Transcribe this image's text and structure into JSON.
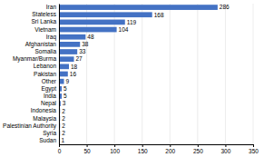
{
  "chart_data": {
    "type": "bar",
    "orientation": "horizontal",
    "categories": [
      "Sudan",
      "Syria",
      "Palestinian Authority",
      "Malaysia",
      "Indonesia",
      "Nepal",
      "India",
      "Egypt",
      "Other",
      "Pakistan",
      "Lebanon",
      "Myanmar/Burma",
      "Somalia",
      "Afghanistan",
      "Iraq",
      "Vietnam",
      "Sri Lanka",
      "Stateless",
      "Iran"
    ],
    "values": [
      1,
      2,
      2,
      2,
      2,
      3,
      5,
      5,
      9,
      16,
      18,
      27,
      33,
      38,
      48,
      104,
      119,
      168,
      286
    ],
    "color": "#4472c4",
    "xlim": [
      0,
      350
    ],
    "xticks": [
      0,
      50,
      100,
      150,
      200,
      250,
      300,
      350
    ],
    "grid": true,
    "data_labels": true
  }
}
